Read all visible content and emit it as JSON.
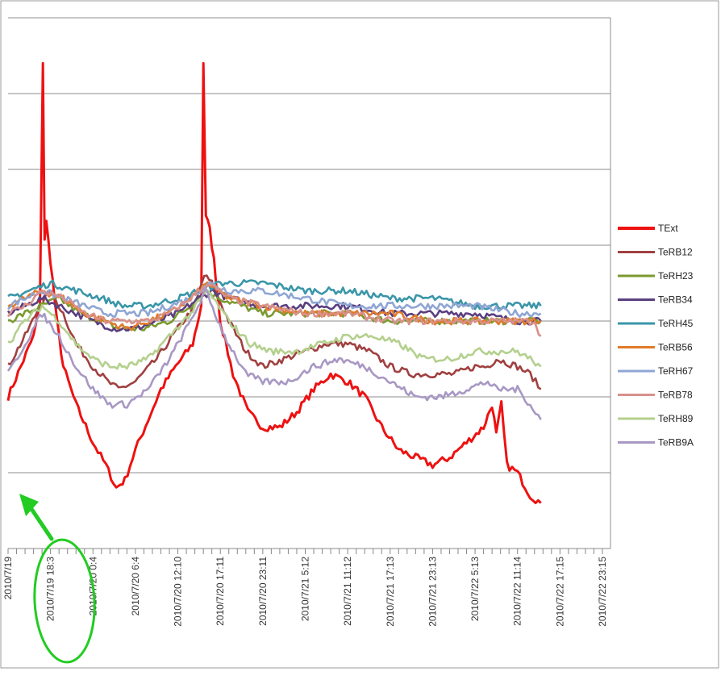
{
  "chart_data": {
    "type": "line",
    "title": "",
    "xlabel": "",
    "ylabel": "",
    "grid": true,
    "legend_position": "right",
    "x_tick_labels": [
      "2010/7/19",
      "2010/7/19 18:3",
      "2010/7/20 0:4",
      "2010/7/20 6:4",
      "2010/7/20 12:10",
      "2010/7/20 17:11",
      "2010/7/20 23:11",
      "2010/7/21 5:12",
      "2010/7/21 11:12",
      "2010/7/21 17:13",
      "2010/7/21 23:13",
      "2010/7/22 5:13",
      "2010/7/22 11:14",
      "2010/7/22 17:15",
      "2010/7/22 23:15"
    ],
    "series": [
      {
        "name": "TExt",
        "color": "#ee1111",
        "values": [
          {
            "x": 0,
            "y": 40
          },
          {
            "x": 0.3,
            "y": 44
          },
          {
            "x": 0.6,
            "y": 48
          },
          {
            "x": 0.75,
            "y": 52
          },
          {
            "x": 0.82,
            "y": 84
          },
          {
            "x": 0.86,
            "y": 61
          },
          {
            "x": 0.9,
            "y": 63
          },
          {
            "x": 1.0,
            "y": 58
          },
          {
            "x": 1.15,
            "y": 50
          },
          {
            "x": 1.3,
            "y": 44
          },
          {
            "x": 1.6,
            "y": 39
          },
          {
            "x": 2.0,
            "y": 34
          },
          {
            "x": 2.3,
            "y": 31
          },
          {
            "x": 2.55,
            "y": 28
          },
          {
            "x": 2.75,
            "y": 29
          },
          {
            "x": 3.0,
            "y": 33
          },
          {
            "x": 3.3,
            "y": 37
          },
          {
            "x": 3.6,
            "y": 41
          },
          {
            "x": 3.95,
            "y": 44
          },
          {
            "x": 4.35,
            "y": 47
          },
          {
            "x": 4.55,
            "y": 52
          },
          {
            "x": 4.6,
            "y": 84
          },
          {
            "x": 4.66,
            "y": 64
          },
          {
            "x": 4.75,
            "y": 62
          },
          {
            "x": 4.85,
            "y": 58
          },
          {
            "x": 5.0,
            "y": 50
          },
          {
            "x": 5.3,
            "y": 43
          },
          {
            "x": 5.65,
            "y": 38
          },
          {
            "x": 6.0,
            "y": 36
          },
          {
            "x": 6.4,
            "y": 36
          },
          {
            "x": 6.8,
            "y": 38
          },
          {
            "x": 7.2,
            "y": 41
          },
          {
            "x": 7.6,
            "y": 43
          },
          {
            "x": 8.0,
            "y": 42
          },
          {
            "x": 8.4,
            "y": 40
          },
          {
            "x": 8.8,
            "y": 36
          },
          {
            "x": 9.2,
            "y": 33
          },
          {
            "x": 9.6,
            "y": 32
          },
          {
            "x": 10.0,
            "y": 31
          },
          {
            "x": 10.4,
            "y": 32
          },
          {
            "x": 10.8,
            "y": 34
          },
          {
            "x": 11.2,
            "y": 36
          },
          {
            "x": 11.4,
            "y": 39
          },
          {
            "x": 11.5,
            "y": 35
          },
          {
            "x": 11.62,
            "y": 39
          },
          {
            "x": 11.75,
            "y": 31
          },
          {
            "x": 12.0,
            "y": 30
          },
          {
            "x": 12.3,
            "y": 27
          },
          {
            "x": 12.55,
            "y": 26
          }
        ]
      },
      {
        "name": "TeRB12",
        "color": "#a04040",
        "values": [
          {
            "x": 0,
            "y": 44
          },
          {
            "x": 0.4,
            "y": 48
          },
          {
            "x": 0.75,
            "y": 52
          },
          {
            "x": 1.0,
            "y": 54
          },
          {
            "x": 1.3,
            "y": 51
          },
          {
            "x": 1.6,
            "y": 47
          },
          {
            "x": 2.0,
            "y": 44
          },
          {
            "x": 2.35,
            "y": 42
          },
          {
            "x": 2.6,
            "y": 41
          },
          {
            "x": 3.0,
            "y": 42
          },
          {
            "x": 3.5,
            "y": 45
          },
          {
            "x": 4.0,
            "y": 49
          },
          {
            "x": 4.4,
            "y": 52
          },
          {
            "x": 4.62,
            "y": 56
          },
          {
            "x": 4.8,
            "y": 55
          },
          {
            "x": 5.2,
            "y": 50
          },
          {
            "x": 5.6,
            "y": 46
          },
          {
            "x": 6.0,
            "y": 44
          },
          {
            "x": 6.5,
            "y": 45
          },
          {
            "x": 7.0,
            "y": 46
          },
          {
            "x": 7.5,
            "y": 47
          },
          {
            "x": 8.0,
            "y": 47
          },
          {
            "x": 8.5,
            "y": 46
          },
          {
            "x": 9.0,
            "y": 44
          },
          {
            "x": 9.5,
            "y": 43
          },
          {
            "x": 10.0,
            "y": 43
          },
          {
            "x": 10.5,
            "y": 43
          },
          {
            "x": 11.0,
            "y": 44
          },
          {
            "x": 11.3,
            "y": 44
          },
          {
            "x": 11.5,
            "y": 45
          },
          {
            "x": 12.0,
            "y": 44
          },
          {
            "x": 12.3,
            "y": 43
          },
          {
            "x": 12.55,
            "y": 41
          }
        ]
      },
      {
        "name": "TeRH23",
        "color": "#7a9a30",
        "values": [
          {
            "x": 0,
            "y": 50
          },
          {
            "x": 0.4,
            "y": 51
          },
          {
            "x": 0.8,
            "y": 52
          },
          {
            "x": 1.2,
            "y": 53
          },
          {
            "x": 1.7,
            "y": 51
          },
          {
            "x": 2.2,
            "y": 50
          },
          {
            "x": 2.6,
            "y": 49
          },
          {
            "x": 3.2,
            "y": 49
          },
          {
            "x": 3.8,
            "y": 50
          },
          {
            "x": 4.3,
            "y": 52
          },
          {
            "x": 4.65,
            "y": 54
          },
          {
            "x": 5.0,
            "y": 53
          },
          {
            "x": 5.5,
            "y": 52
          },
          {
            "x": 6.0,
            "y": 51
          },
          {
            "x": 7.0,
            "y": 51
          },
          {
            "x": 8.0,
            "y": 51
          },
          {
            "x": 9.0,
            "y": 50
          },
          {
            "x": 10.0,
            "y": 50
          },
          {
            "x": 11.0,
            "y": 50
          },
          {
            "x": 12.0,
            "y": 50
          },
          {
            "x": 12.55,
            "y": 50
          }
        ]
      },
      {
        "name": "TeRB34",
        "color": "#5a3f80",
        "values": [
          {
            "x": 0,
            "y": 51
          },
          {
            "x": 0.4,
            "y": 52
          },
          {
            "x": 0.8,
            "y": 53
          },
          {
            "x": 1.2,
            "y": 52
          },
          {
            "x": 1.6,
            "y": 51
          },
          {
            "x": 2.0,
            "y": 50
          },
          {
            "x": 2.5,
            "y": 49
          },
          {
            "x": 3.0,
            "y": 49
          },
          {
            "x": 3.5,
            "y": 50
          },
          {
            "x": 4.0,
            "y": 51
          },
          {
            "x": 4.5,
            "y": 53
          },
          {
            "x": 4.8,
            "y": 54
          },
          {
            "x": 5.2,
            "y": 53
          },
          {
            "x": 6.0,
            "y": 52
          },
          {
            "x": 7.0,
            "y": 52
          },
          {
            "x": 8.0,
            "y": 52
          },
          {
            "x": 9.0,
            "y": 51
          },
          {
            "x": 10.0,
            "y": 51
          },
          {
            "x": 11.0,
            "y": 51
          },
          {
            "x": 12.0,
            "y": 50
          },
          {
            "x": 12.55,
            "y": 50
          }
        ]
      },
      {
        "name": "TeRH45",
        "color": "#3a96a8",
        "values": [
          {
            "x": 0,
            "y": 53
          },
          {
            "x": 0.5,
            "y": 54
          },
          {
            "x": 1.0,
            "y": 55
          },
          {
            "x": 1.6,
            "y": 54
          },
          {
            "x": 2.2,
            "y": 53
          },
          {
            "x": 2.7,
            "y": 52
          },
          {
            "x": 3.3,
            "y": 52
          },
          {
            "x": 4.0,
            "y": 53
          },
          {
            "x": 4.5,
            "y": 54
          },
          {
            "x": 5.0,
            "y": 55
          },
          {
            "x": 5.5,
            "y": 55
          },
          {
            "x": 6.0,
            "y": 55
          },
          {
            "x": 7.0,
            "y": 54
          },
          {
            "x": 8.0,
            "y": 54
          },
          {
            "x": 9.0,
            "y": 53
          },
          {
            "x": 10.0,
            "y": 53
          },
          {
            "x": 11.0,
            "y": 52
          },
          {
            "x": 12.0,
            "y": 52
          },
          {
            "x": 12.55,
            "y": 52
          }
        ]
      },
      {
        "name": "TeRB56",
        "color": "#e07a2a",
        "values": [
          {
            "x": 0,
            "y": 52
          },
          {
            "x": 0.4,
            "y": 53
          },
          {
            "x": 0.8,
            "y": 54
          },
          {
            "x": 1.3,
            "y": 53
          },
          {
            "x": 1.8,
            "y": 51
          },
          {
            "x": 2.3,
            "y": 50
          },
          {
            "x": 2.8,
            "y": 49
          },
          {
            "x": 3.3,
            "y": 50
          },
          {
            "x": 3.8,
            "y": 51
          },
          {
            "x": 4.3,
            "y": 53
          },
          {
            "x": 4.7,
            "y": 55
          },
          {
            "x": 5.2,
            "y": 53
          },
          {
            "x": 6.0,
            "y": 52
          },
          {
            "x": 7.0,
            "y": 51
          },
          {
            "x": 8.0,
            "y": 51
          },
          {
            "x": 9.0,
            "y": 51
          },
          {
            "x": 10.0,
            "y": 50
          },
          {
            "x": 11.0,
            "y": 50
          },
          {
            "x": 12.0,
            "y": 50
          },
          {
            "x": 12.55,
            "y": 50
          }
        ]
      },
      {
        "name": "TeRH67",
        "color": "#8fa6d4",
        "values": [
          {
            "x": 0,
            "y": 52
          },
          {
            "x": 0.4,
            "y": 53
          },
          {
            "x": 0.8,
            "y": 54
          },
          {
            "x": 1.3,
            "y": 53
          },
          {
            "x": 1.8,
            "y": 52
          },
          {
            "x": 2.3,
            "y": 51
          },
          {
            "x": 2.8,
            "y": 51
          },
          {
            "x": 3.3,
            "y": 51
          },
          {
            "x": 3.8,
            "y": 52
          },
          {
            "x": 4.3,
            "y": 53
          },
          {
            "x": 4.7,
            "y": 55
          },
          {
            "x": 5.2,
            "y": 54
          },
          {
            "x": 6.0,
            "y": 54
          },
          {
            "x": 7.0,
            "y": 53
          },
          {
            "x": 8.0,
            "y": 52
          },
          {
            "x": 9.0,
            "y": 52
          },
          {
            "x": 10.0,
            "y": 52
          },
          {
            "x": 11.0,
            "y": 52
          },
          {
            "x": 12.0,
            "y": 51
          },
          {
            "x": 12.55,
            "y": 51
          }
        ]
      },
      {
        "name": "TeRB78",
        "color": "#d9908a",
        "values": [
          {
            "x": 0,
            "y": 51
          },
          {
            "x": 0.4,
            "y": 52
          },
          {
            "x": 0.8,
            "y": 54
          },
          {
            "x": 1.3,
            "y": 53
          },
          {
            "x": 1.8,
            "y": 51
          },
          {
            "x": 2.3,
            "y": 50
          },
          {
            "x": 2.8,
            "y": 50
          },
          {
            "x": 3.3,
            "y": 50
          },
          {
            "x": 3.8,
            "y": 51
          },
          {
            "x": 4.3,
            "y": 53
          },
          {
            "x": 4.7,
            "y": 55
          },
          {
            "x": 5.2,
            "y": 53
          },
          {
            "x": 6.0,
            "y": 52
          },
          {
            "x": 7.0,
            "y": 51
          },
          {
            "x": 8.0,
            "y": 51
          },
          {
            "x": 9.0,
            "y": 50
          },
          {
            "x": 10.0,
            "y": 50
          },
          {
            "x": 11.0,
            "y": 50
          },
          {
            "x": 12.0,
            "y": 50
          },
          {
            "x": 12.4,
            "y": 50
          },
          {
            "x": 12.55,
            "y": 48
          }
        ]
      },
      {
        "name": "TeRH89",
        "color": "#b4d08e",
        "values": [
          {
            "x": 0,
            "y": 47
          },
          {
            "x": 0.4,
            "y": 50
          },
          {
            "x": 0.8,
            "y": 52
          },
          {
            "x": 1.2,
            "y": 50
          },
          {
            "x": 1.6,
            "y": 47
          },
          {
            "x": 2.0,
            "y": 45
          },
          {
            "x": 2.4,
            "y": 44
          },
          {
            "x": 2.8,
            "y": 44
          },
          {
            "x": 3.3,
            "y": 45
          },
          {
            "x": 3.8,
            "y": 48
          },
          {
            "x": 4.3,
            "y": 51
          },
          {
            "x": 4.7,
            "y": 54
          },
          {
            "x": 5.2,
            "y": 50
          },
          {
            "x": 5.7,
            "y": 47
          },
          {
            "x": 6.2,
            "y": 46
          },
          {
            "x": 6.8,
            "y": 46
          },
          {
            "x": 7.4,
            "y": 47
          },
          {
            "x": 8.0,
            "y": 48
          },
          {
            "x": 8.6,
            "y": 48
          },
          {
            "x": 9.2,
            "y": 47
          },
          {
            "x": 9.8,
            "y": 45
          },
          {
            "x": 10.4,
            "y": 45
          },
          {
            "x": 11.0,
            "y": 46
          },
          {
            "x": 11.5,
            "y": 46
          },
          {
            "x": 12.0,
            "y": 46
          },
          {
            "x": 12.3,
            "y": 45
          },
          {
            "x": 12.55,
            "y": 44
          }
        ]
      },
      {
        "name": "TeRB9A",
        "color": "#a898c4",
        "values": [
          {
            "x": 0,
            "y": 43
          },
          {
            "x": 0.4,
            "y": 47
          },
          {
            "x": 0.8,
            "y": 51
          },
          {
            "x": 1.2,
            "y": 48
          },
          {
            "x": 1.6,
            "y": 44
          },
          {
            "x": 2.0,
            "y": 41
          },
          {
            "x": 2.4,
            "y": 39
          },
          {
            "x": 2.8,
            "y": 39
          },
          {
            "x": 3.3,
            "y": 41
          },
          {
            "x": 3.8,
            "y": 45
          },
          {
            "x": 4.3,
            "y": 50
          },
          {
            "x": 4.65,
            "y": 54
          },
          {
            "x": 5.1,
            "y": 48
          },
          {
            "x": 5.6,
            "y": 43
          },
          {
            "x": 6.0,
            "y": 42
          },
          {
            "x": 6.6,
            "y": 42
          },
          {
            "x": 7.2,
            "y": 44
          },
          {
            "x": 7.8,
            "y": 45
          },
          {
            "x": 8.4,
            "y": 44
          },
          {
            "x": 9.0,
            "y": 42
          },
          {
            "x": 9.6,
            "y": 40
          },
          {
            "x": 10.2,
            "y": 40
          },
          {
            "x": 10.8,
            "y": 41
          },
          {
            "x": 11.3,
            "y": 42
          },
          {
            "x": 11.5,
            "y": 41
          },
          {
            "x": 12.0,
            "y": 41
          },
          {
            "x": 12.3,
            "y": 39
          },
          {
            "x": 12.55,
            "y": 37
          }
        ]
      }
    ]
  },
  "annotation": {
    "arrow_color": "#22cc22"
  }
}
